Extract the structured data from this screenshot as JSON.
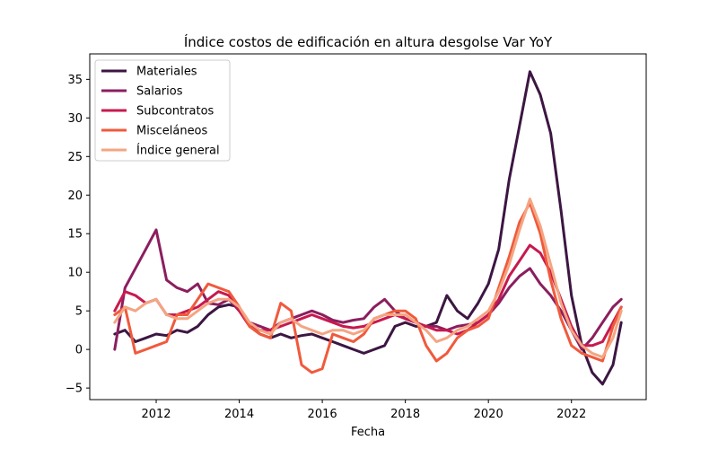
{
  "chart_data": {
    "type": "line",
    "title": "Índice costos de edificación en altura desgolse Var YoY",
    "xlabel": "Fecha",
    "ylabel": "",
    "xlim": [
      2010.4,
      2023.8
    ],
    "ylim": [
      -6.5,
      38.3
    ],
    "xticks": [
      2012,
      2014,
      2016,
      2018,
      2020,
      2022
    ],
    "yticks": [
      -5,
      0,
      5,
      10,
      15,
      20,
      25,
      30,
      35
    ],
    "grid": false,
    "legend_position": "top-left",
    "x": [
      2011.0,
      2011.25,
      2011.5,
      2011.75,
      2012.0,
      2012.25,
      2012.5,
      2012.75,
      2013.0,
      2013.25,
      2013.5,
      2013.75,
      2014.0,
      2014.25,
      2014.5,
      2014.75,
      2015.0,
      2015.25,
      2015.5,
      2015.75,
      2016.0,
      2016.25,
      2016.5,
      2016.75,
      2017.0,
      2017.25,
      2017.5,
      2017.75,
      2018.0,
      2018.25,
      2018.5,
      2018.75,
      2019.0,
      2019.25,
      2019.5,
      2019.75,
      2020.0,
      2020.25,
      2020.5,
      2020.75,
      2021.0,
      2021.25,
      2021.5,
      2021.75,
      2022.0,
      2022.25,
      2022.5,
      2022.75,
      2023.0,
      2023.2
    ],
    "series": [
      {
        "name": "Materiales",
        "color": "#3c1642",
        "values": [
          2.0,
          2.5,
          1.0,
          1.5,
          2.0,
          1.8,
          2.5,
          2.2,
          3.0,
          4.5,
          5.5,
          5.8,
          5.5,
          3.0,
          2.0,
          1.5,
          2.0,
          1.5,
          1.8,
          2.0,
          1.5,
          1.0,
          0.5,
          0.0,
          -0.5,
          0.0,
          0.5,
          3.0,
          3.5,
          3.0,
          3.0,
          3.5,
          7.0,
          5.0,
          4.0,
          6.0,
          8.5,
          13.0,
          22.0,
          29.0,
          36.0,
          33.0,
          28.0,
          18.0,
          7.0,
          0.5,
          -3.0,
          -4.5,
          -2.0,
          3.5
        ]
      },
      {
        "name": "Salarios",
        "color": "#8b1e5f",
        "values": [
          0.0,
          8.0,
          10.5,
          13.0,
          15.5,
          9.0,
          8.0,
          7.5,
          8.5,
          6.0,
          5.8,
          6.5,
          5.0,
          3.5,
          3.0,
          2.5,
          3.5,
          4.0,
          4.5,
          5.0,
          4.5,
          3.8,
          3.5,
          3.8,
          4.0,
          5.5,
          6.5,
          5.0,
          4.0,
          3.5,
          3.0,
          3.0,
          2.5,
          3.0,
          3.2,
          3.5,
          4.5,
          6.0,
          8.0,
          9.5,
          10.5,
          8.5,
          7.0,
          5.0,
          2.5,
          0.0,
          1.5,
          3.5,
          5.5,
          6.5
        ]
      },
      {
        "name": "Subcontratos",
        "color": "#c7194f",
        "values": [
          5.0,
          7.5,
          7.0,
          6.0,
          6.5,
          4.5,
          4.5,
          5.0,
          5.5,
          6.5,
          7.5,
          7.0,
          5.0,
          3.0,
          2.5,
          2.5,
          3.0,
          3.5,
          4.0,
          4.5,
          4.0,
          3.5,
          3.0,
          2.8,
          3.0,
          3.5,
          4.0,
          4.5,
          4.0,
          3.5,
          3.0,
          2.5,
          2.5,
          2.0,
          2.5,
          3.5,
          4.5,
          6.5,
          9.5,
          11.5,
          13.5,
          12.5,
          10.0,
          6.5,
          3.0,
          0.5,
          0.5,
          1.0,
          3.5,
          5.5
        ]
      },
      {
        "name": "Misceláneos",
        "color": "#f05a3c",
        "values": [
          4.5,
          5.5,
          -0.5,
          0.0,
          0.5,
          1.0,
          4.5,
          4.5,
          6.5,
          8.5,
          8.0,
          7.5,
          5.5,
          3.0,
          2.0,
          1.5,
          6.0,
          5.0,
          -2.0,
          -3.0,
          -2.5,
          2.0,
          1.5,
          1.0,
          2.0,
          4.0,
          4.5,
          5.0,
          5.0,
          4.0,
          0.5,
          -1.5,
          -0.5,
          1.5,
          2.5,
          3.0,
          4.0,
          8.0,
          12.0,
          16.5,
          19.0,
          15.0,
          9.0,
          4.0,
          0.5,
          -0.5,
          -1.0,
          -1.5,
          3.0,
          5.5
        ]
      },
      {
        "name": "Índice general",
        "color": "#f4a582",
        "values": [
          3.5,
          5.5,
          5.0,
          6.0,
          6.5,
          4.5,
          4.0,
          4.0,
          5.0,
          6.0,
          6.5,
          6.5,
          5.5,
          3.5,
          2.5,
          2.0,
          3.5,
          4.0,
          3.0,
          2.5,
          2.0,
          2.5,
          2.5,
          2.0,
          2.5,
          4.0,
          4.5,
          4.5,
          4.5,
          3.5,
          2.5,
          1.0,
          1.5,
          2.5,
          3.0,
          4.0,
          5.0,
          7.5,
          11.0,
          15.5,
          19.5,
          16.0,
          11.0,
          6.0,
          2.5,
          0.5,
          -0.5,
          -1.0,
          1.5,
          5.0
        ]
      }
    ]
  }
}
